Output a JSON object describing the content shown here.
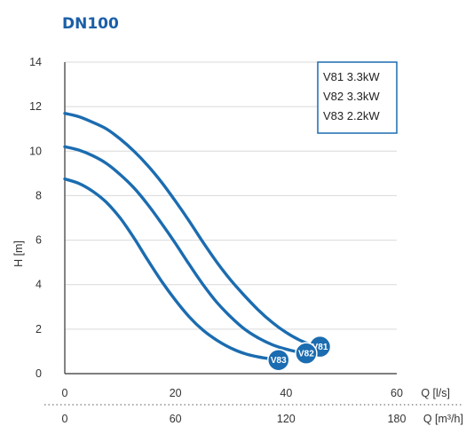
{
  "colors": {
    "curve": "#1b6cb0",
    "title": "#1b5fa8",
    "grid": "#d9d9d9",
    "legend_border": "#1b6cb0",
    "badge": "#1b6cb0"
  },
  "chart_data": {
    "type": "line",
    "title": "DN100",
    "ylabel": "H [m]",
    "xlabel": "Q [l/s]",
    "xlabel_secondary": "Q [m³/h]",
    "xlim": [
      0,
      60
    ],
    "ylim": [
      0,
      14
    ],
    "x_ticks": [
      "0",
      "20",
      "40",
      "60"
    ],
    "x_ticks_secondary": [
      "0",
      "60",
      "120",
      "180"
    ],
    "y_ticks": [
      "0",
      "2",
      "4",
      "6",
      "8",
      "10",
      "12",
      "14"
    ],
    "grid": "horizontal",
    "legend": {
      "placement": "top-right",
      "entries": [
        "V81 3.3kW",
        "V82 3.3kW",
        "V83 2.2kW"
      ]
    },
    "series": [
      {
        "name": "V81",
        "x": [
          0,
          2.5,
          5,
          7.5,
          10,
          12.5,
          15,
          17.5,
          20,
          22.5,
          25,
          27.5,
          30,
          32.5,
          35,
          37.5,
          40,
          42.5,
          45
        ],
        "y": [
          11.7,
          11.55,
          11.3,
          11.0,
          10.55,
          10.0,
          9.35,
          8.6,
          7.75,
          6.85,
          5.9,
          5.0,
          4.2,
          3.5,
          2.85,
          2.3,
          1.85,
          1.5,
          1.25
        ]
      },
      {
        "name": "V82",
        "x": [
          0,
          2.5,
          5,
          7.5,
          10,
          12.5,
          15,
          17.5,
          20,
          22.5,
          25,
          27.5,
          30,
          32.5,
          35,
          37.5,
          40,
          42.5
        ],
        "y": [
          10.2,
          10.05,
          9.8,
          9.45,
          8.95,
          8.35,
          7.6,
          6.75,
          5.85,
          4.9,
          4.0,
          3.2,
          2.55,
          2.0,
          1.6,
          1.3,
          1.1,
          0.95
        ]
      },
      {
        "name": "V83",
        "x": [
          0,
          2.5,
          5,
          7.5,
          10,
          12.5,
          15,
          17.5,
          20,
          22.5,
          25,
          27.5,
          30,
          32.5,
          35,
          37.5
        ],
        "y": [
          8.75,
          8.55,
          8.2,
          7.7,
          7.0,
          6.1,
          5.1,
          4.15,
          3.3,
          2.55,
          1.95,
          1.5,
          1.15,
          0.9,
          0.75,
          0.65
        ]
      }
    ]
  }
}
